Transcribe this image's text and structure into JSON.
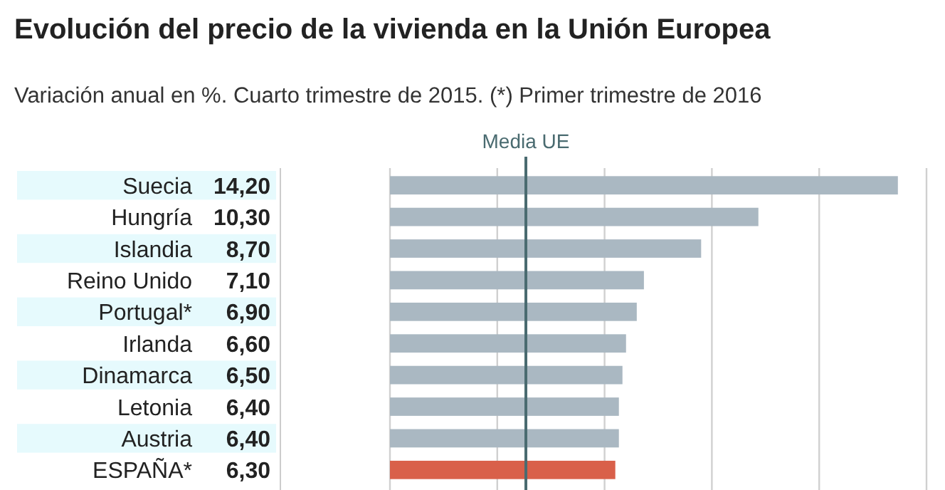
{
  "chart_data": {
    "type": "bar",
    "orientation": "horizontal",
    "title": "Evolución del precio de la vivienda en la Unión Europea",
    "subtitle": "Variación anual en %. Cuarto trimestre de 2015. (*) Primer trimestre de 2016",
    "categories": [
      "Suecia",
      "Hungría",
      "Islandia",
      "Reino Unido",
      "Portugal*",
      "Irlanda",
      "Dinamarca",
      "Letonia",
      "Austria",
      "ESPAÑA*"
    ],
    "values": [
      14.2,
      10.3,
      8.7,
      7.1,
      6.9,
      6.6,
      6.5,
      6.4,
      6.4,
      6.3
    ],
    "value_labels": [
      "14,20",
      "10,30",
      "8,70",
      "7,10",
      "6,90",
      "6,60",
      "6,50",
      "6,40",
      "6,40",
      "6,30"
    ],
    "colors": [
      "#aab8c2",
      "#aab8c2",
      "#aab8c2",
      "#aab8c2",
      "#aab8c2",
      "#aab8c2",
      "#aab8c2",
      "#aab8c2",
      "#aab8c2",
      "#d9604a"
    ],
    "xlim": [
      0,
      15
    ],
    "xticks": [
      {
        "value": 0,
        "label": null
      },
      {
        "value": 3,
        "label": null
      },
      {
        "value": 6,
        "label": null
      },
      {
        "value": 9,
        "label": null
      },
      {
        "value": 12,
        "label": null
      },
      {
        "value": 15,
        "label": null
      }
    ],
    "grid": "x",
    "ref_lines": [
      {
        "axis": "x",
        "value": 3.8,
        "label": "Media UE",
        "color": "#4a6b70"
      }
    ]
  }
}
